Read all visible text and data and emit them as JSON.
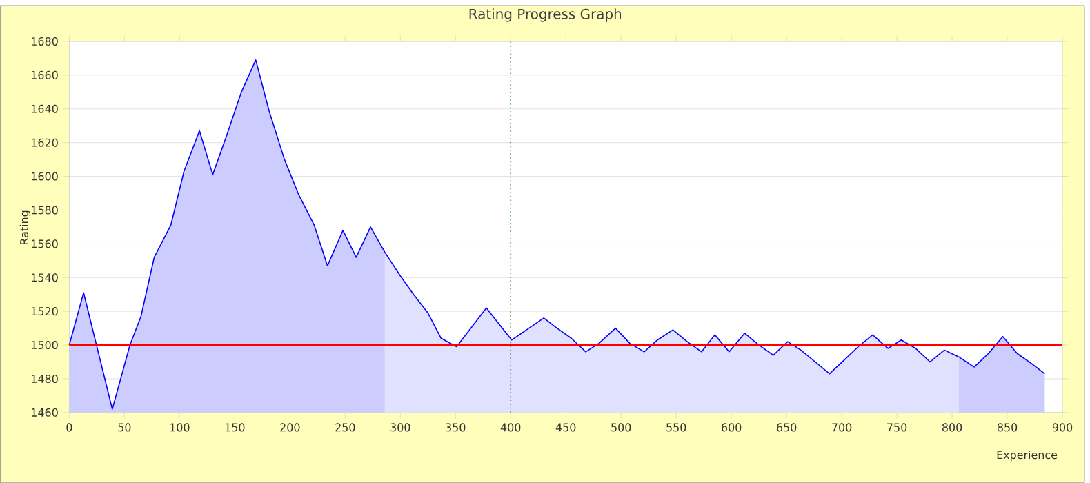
{
  "chart_data": {
    "type": "area",
    "title": "Rating Progress Graph",
    "xlabel": "Experience",
    "ylabel": "Rating",
    "series": [
      {
        "color": "#ccccff",
        "x": [
          0,
          13,
          39,
          55,
          65,
          77,
          92,
          104,
          118,
          130,
          142,
          156,
          169,
          181,
          195,
          208,
          222,
          234,
          248,
          260,
          273,
          286
        ],
        "values": [
          1500,
          1531,
          1462,
          1500,
          1517,
          1552,
          1571,
          1603,
          1627,
          1601,
          1623,
          1650,
          1669,
          1639,
          1610,
          1589,
          1571,
          1547,
          1568,
          1552,
          1570,
          1555
        ]
      },
      {
        "color": "#e0e0ff",
        "x": [
          286,
          300,
          312,
          325,
          337,
          351,
          378,
          390,
          401,
          430,
          442,
          455,
          468,
          480,
          495,
          508,
          521,
          533,
          547,
          560,
          573,
          585,
          598,
          612,
          625,
          638,
          651,
          663,
          676,
          689,
          702,
          715,
          728,
          742,
          754,
          767,
          780,
          793,
          806
        ],
        "values": [
          1555,
          1541,
          1530,
          1519,
          1504,
          1499,
          1522,
          1512,
          1503,
          1516,
          1510,
          1504,
          1496,
          1501,
          1510,
          1501,
          1496,
          1503,
          1509,
          1502,
          1496,
          1506,
          1496,
          1507,
          1500,
          1494,
          1502,
          1497,
          1490,
          1483,
          1491,
          1499,
          1506,
          1498,
          1503,
          1498,
          1490,
          1497,
          1493
        ]
      },
      {
        "color": "#ccccff",
        "x": [
          806,
          820,
          833,
          846,
          859,
          872,
          884
        ],
        "values": [
          1493,
          1487,
          1495,
          1505,
          1495,
          1489,
          1483
        ]
      },
      {
        "type": "line",
        "color": "#0000ff",
        "x": [
          0,
          13,
          39,
          55,
          65,
          77,
          92,
          104,
          118,
          130,
          142,
          156,
          169,
          181,
          195,
          208,
          222,
          234,
          248,
          260,
          273,
          286,
          300,
          312,
          325,
          337,
          351,
          378,
          390,
          401,
          430,
          442,
          455,
          468,
          480,
          495,
          508,
          521,
          533,
          547,
          560,
          573,
          585,
          598,
          612,
          625,
          638,
          651,
          663,
          676,
          689,
          702,
          715,
          728,
          742,
          754,
          767,
          780,
          793,
          806,
          820,
          833,
          846,
          859,
          872,
          884
        ],
        "values": [
          1500,
          1531,
          1462,
          1500,
          1517,
          1552,
          1571,
          1603,
          1627,
          1601,
          1623,
          1650,
          1669,
          1639,
          1610,
          1589,
          1571,
          1547,
          1568,
          1552,
          1570,
          1555,
          1541,
          1530,
          1519,
          1504,
          1499,
          1522,
          1512,
          1503,
          1516,
          1510,
          1504,
          1496,
          1501,
          1510,
          1501,
          1496,
          1503,
          1509,
          1502,
          1496,
          1506,
          1496,
          1507,
          1500,
          1494,
          1502,
          1497,
          1490,
          1483,
          1491,
          1499,
          1506,
          1498,
          1503,
          1498,
          1490,
          1497,
          1493,
          1487,
          1495,
          1505,
          1495,
          1489,
          1483
        ]
      }
    ],
    "xlim": [
      0,
      900
    ],
    "ylim": [
      1460,
      1680
    ],
    "xticks": [
      0,
      50,
      100,
      150,
      200,
      250,
      300,
      350,
      400,
      450,
      500,
      550,
      600,
      650,
      700,
      750,
      800,
      850,
      900
    ],
    "yticks": [
      1460,
      1480,
      1500,
      1520,
      1540,
      1560,
      1580,
      1600,
      1620,
      1640,
      1660,
      1680
    ],
    "grid": "y",
    "ref_lines": [
      {
        "axis": "y",
        "value": 1500,
        "color": "#ff0000",
        "line_style": "solid"
      },
      {
        "axis": "x",
        "value": 400,
        "color": "#008000",
        "line_style": "dotted"
      }
    ]
  }
}
